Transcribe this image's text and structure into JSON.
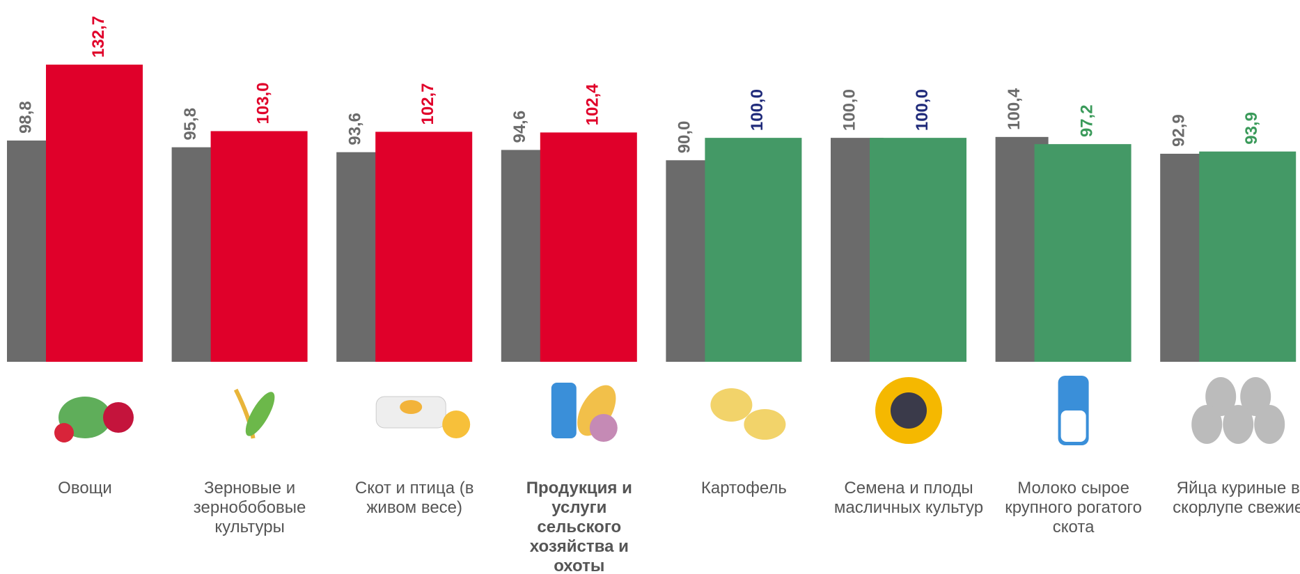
{
  "chart_data": {
    "type": "bar",
    "categories": [
      "Овощи",
      "Зерновые и зернобобовые культуры",
      "Скот и птица (в живом весе)",
      "Продукция и услуги сельского хозяйства и охоты",
      "Картофель",
      "Семена и плоды масличных культур",
      "Молоко сырое крупного рогатого скота",
      "Яйца куриные в скорлупе свежие"
    ],
    "bold_category": 3,
    "ylim": [
      0,
      160
    ],
    "series": [
      {
        "color": "#6b6b6b",
        "label_color": "#6b6b6b",
        "values": [
          98.8,
          95.8,
          93.6,
          94.6,
          90.0,
          100.0,
          100.4,
          92.9
        ],
        "value_labels": [
          "98,8",
          "95,8",
          "93,6",
          "94,6",
          "90,0",
          "100,0",
          "100,4",
          "92,9"
        ]
      },
      {
        "colors": [
          "#e0002a",
          "#e0002a",
          "#e0002a",
          "#e0002a",
          "#449966",
          "#449966",
          "#449966",
          "#449966"
        ],
        "label_colors": [
          "#e0002a",
          "#e0002a",
          "#e0002a",
          "#e0002a",
          "#1f2a7a",
          "#1f2a7a",
          "#3a9a5a",
          "#3a9a5a"
        ],
        "values": [
          132.7,
          103.0,
          102.7,
          102.4,
          100.0,
          100.0,
          97.2,
          93.9
        ],
        "value_labels": [
          "132,7",
          "103,0",
          "102,7",
          "102,4",
          "100,0",
          "100,0",
          "97,2",
          "93,9"
        ]
      }
    ]
  }
}
